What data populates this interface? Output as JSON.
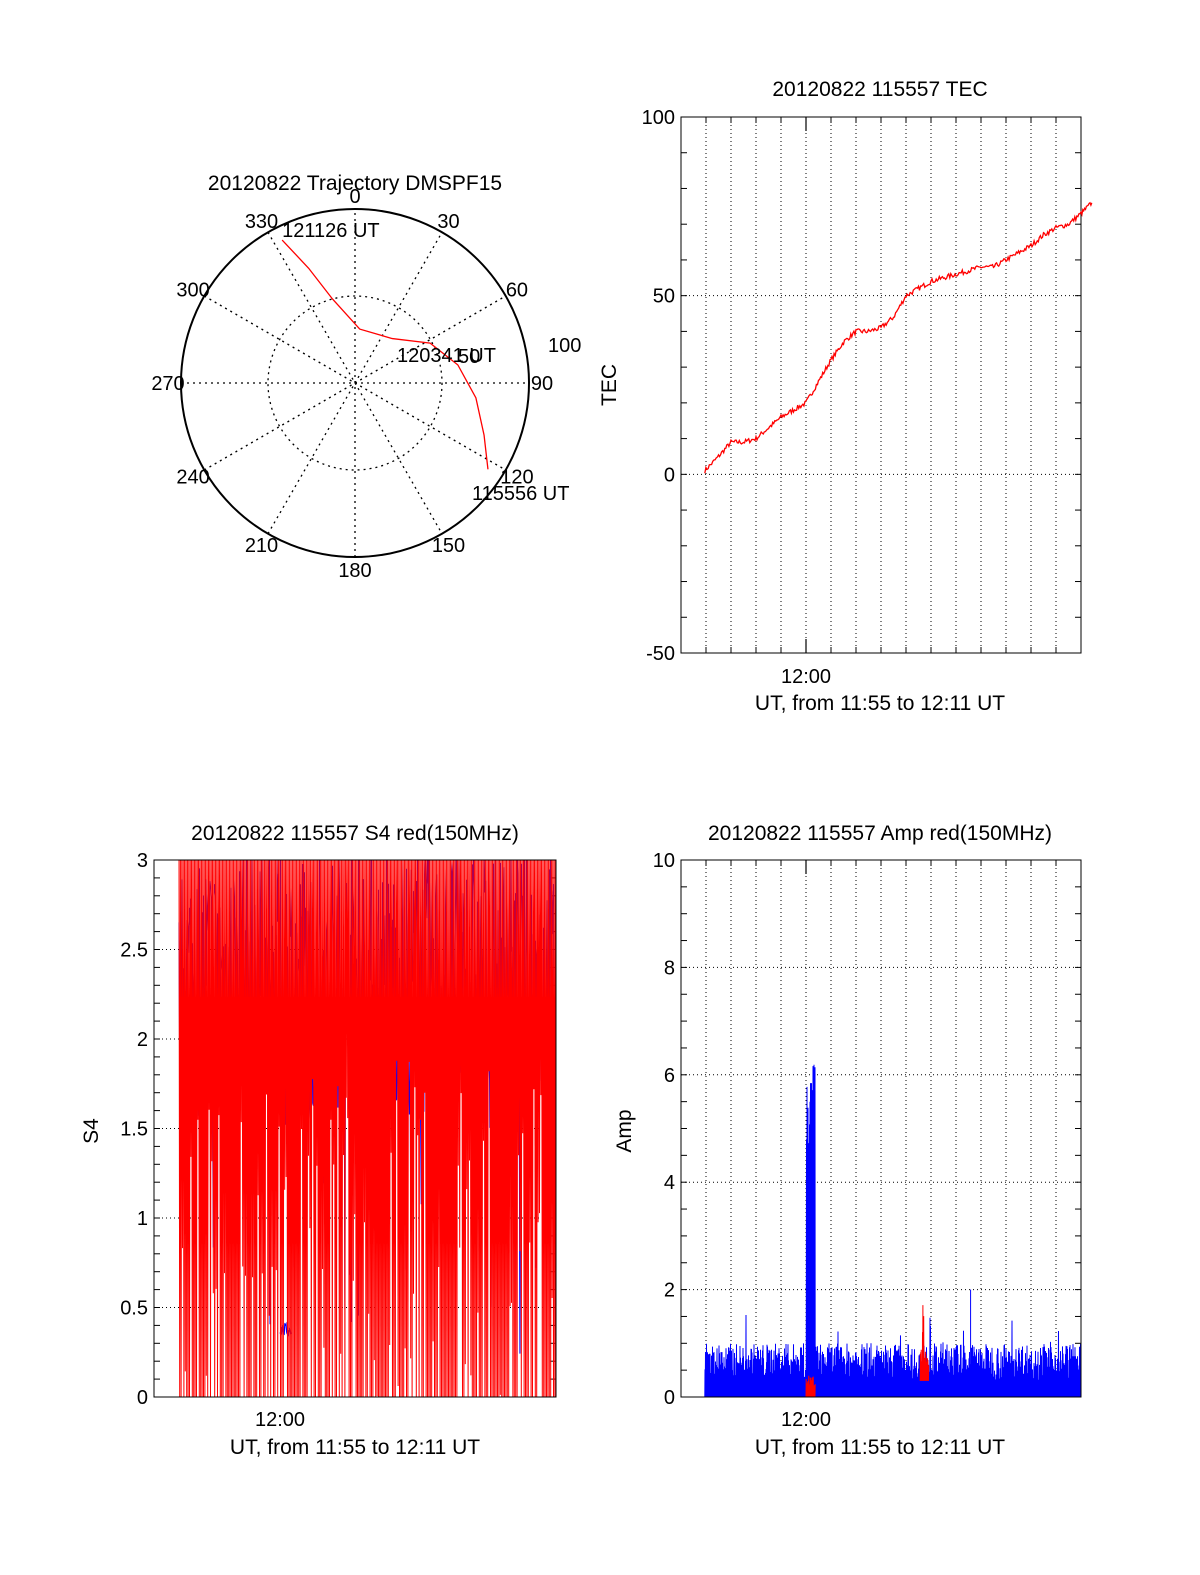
{
  "colors": {
    "red": "#ff0000",
    "blue": "#0000ff",
    "black": "#000000",
    "background": "#ffffff"
  },
  "chart_data": [
    {
      "id": "trajectory",
      "type": "polar",
      "title": "20120822 Trajectory DMSPF15",
      "angle_ticks": [
        "0",
        "30",
        "60",
        "90",
        "120",
        "150",
        "180",
        "210",
        "240",
        "270",
        "300",
        "330"
      ],
      "radial_ticks": [
        "50",
        "100"
      ],
      "rlim": [
        0,
        100
      ],
      "grid": true,
      "series": [
        {
          "color": "#ff0000",
          "points": [
            {
              "az": 333,
              "el": 7
            },
            {
              "az": 338,
              "el": 26
            },
            {
              "az": 345,
              "el": 45
            },
            {
              "az": 5,
              "el": 62
            },
            {
              "az": 40,
              "el": 60
            },
            {
              "az": 62,
              "el": 46
            },
            {
              "az": 80,
              "el": 36
            },
            {
              "az": 97,
              "el": 27
            },
            {
              "az": 112,
              "el": 18
            },
            {
              "az": 123,
              "el": 8
            }
          ]
        }
      ],
      "annotations": [
        {
          "text": "121126 UT",
          "az": 333,
          "el": 7
        },
        {
          "text": "120341 UT",
          "az": 60,
          "el": 50
        },
        {
          "text": "115556 UT",
          "az": 123,
          "el": 8
        }
      ]
    },
    {
      "id": "tec",
      "type": "line",
      "title": "20120822 115557 TEC",
      "xlabel": "UT, from 11:55 to 12:11 UT",
      "ylabel": "TEC",
      "xlim": [
        "11:55",
        "12:11"
      ],
      "ylim": [
        -50,
        100
      ],
      "yticks": [
        "-50",
        "0",
        "50",
        "100"
      ],
      "xticks": [
        "12:00"
      ],
      "grid": true,
      "series": [
        {
          "color": "#ff0000",
          "x": [
            "11:55:57",
            "11:56:30",
            "11:57:00",
            "11:57:30",
            "11:58:00",
            "11:58:30",
            "11:59:00",
            "11:59:30",
            "12:00:00",
            "12:00:30",
            "12:01:00",
            "12:01:30",
            "12:02:00",
            "12:02:30",
            "12:03:00",
            "12:03:30",
            "12:04:00",
            "12:04:30",
            "12:05:00",
            "12:05:30",
            "12:06:00",
            "12:06:30",
            "12:07:00",
            "12:07:30",
            "12:08:00",
            "12:08:30",
            "12:09:00",
            "12:09:30",
            "12:10:00",
            "12:10:30",
            "12:11:00",
            "12:11:26"
          ],
          "values": [
            1,
            5,
            9,
            9,
            10,
            13,
            16,
            18,
            20,
            26,
            32,
            37,
            40,
            40,
            41,
            44,
            50,
            52,
            54,
            55,
            56,
            57,
            58,
            58,
            60,
            62,
            64,
            67,
            69,
            70,
            73,
            76
          ]
        }
      ]
    },
    {
      "id": "s4",
      "type": "line",
      "title": "20120822 115557 S4 red(150MHz)",
      "xlabel": "UT, from 11:55 to 12:11 UT",
      "ylabel": "S4",
      "xlim": [
        "11:55",
        "12:11"
      ],
      "ylim": [
        0,
        3
      ],
      "yticks": [
        "0",
        "0.5",
        "1",
        "1.5",
        "2",
        "2.5",
        "3"
      ],
      "xticks": [
        "12:00"
      ],
      "grid": true,
      "series": [
        {
          "name_hidden": true,
          "color": "#0000ff",
          "description_values": "blue S4 trace, mostly between 1.5 and 3, with a cluster near 0.37 just after 12:00"
        },
        {
          "name_hidden": true,
          "color": "#ff0000",
          "description_values": "red S4 trace, dense spikes spanning 0 to 3"
        }
      ]
    },
    {
      "id": "amp",
      "type": "line",
      "title": "20120822 115557 Amp red(150MHz)",
      "xlabel": "UT, from 11:55 to 12:11 UT",
      "ylabel": "Amp",
      "xlim": [
        "11:55",
        "12:11"
      ],
      "ylim": [
        0,
        10
      ],
      "yticks": [
        "0",
        "2",
        "4",
        "6",
        "8",
        "10"
      ],
      "xticks": [
        "12:00"
      ],
      "grid": true,
      "series": [
        {
          "color": "#0000ff",
          "peak": 6.2,
          "peak_time": "12:00:00",
          "baseline": 0.6
        },
        {
          "color": "#ff0000",
          "peak": 1.95,
          "peak_time": "12:04:40",
          "baseline": 0.3
        }
      ]
    }
  ]
}
